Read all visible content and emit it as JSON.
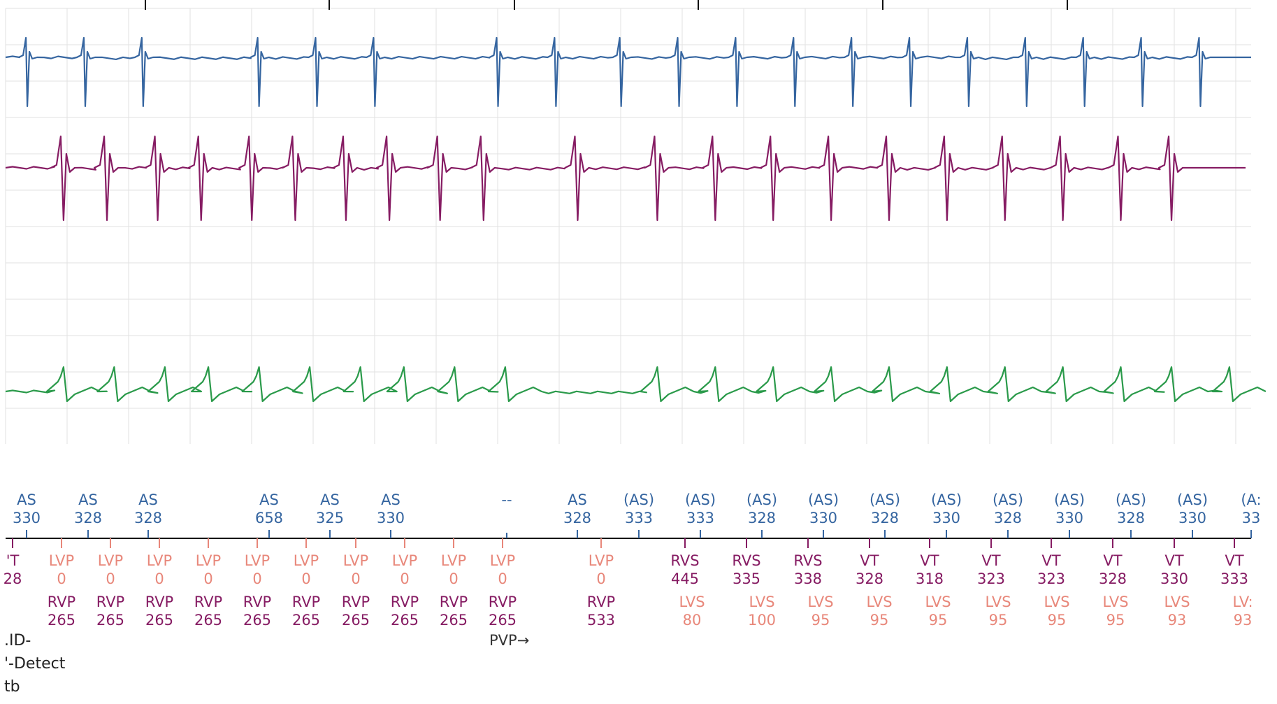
{
  "colors": {
    "atrial": "#3565a0",
    "rv": "#861c63",
    "lv": "#e8877a",
    "shock": "#2a9a4a",
    "grid": "#e2e2e2",
    "axis": "#111111"
  },
  "chart_data": {
    "type": "line",
    "title": "",
    "grid": true,
    "channels": [
      {
        "name": "",
        "color": "#3565a0",
        "kind": "atrial-egm",
        "beats": [
          0.3,
          1.1,
          1.9,
          3.5,
          4.3,
          5.1,
          6.8,
          7.6,
          8.5,
          9.3,
          10.1,
          10.9,
          11.7,
          12.5,
          13.3,
          14.1,
          14.9,
          15.7,
          16.5
        ]
      },
      {
        "name": "",
        "color": "#861c63",
        "kind": "ventricular-egm",
        "beats": [
          0.8,
          1.4,
          2.1,
          2.7,
          3.4,
          4.0,
          4.7,
          5.3,
          6.0,
          6.6,
          7.9,
          9.0,
          9.8,
          10.6,
          11.4,
          12.2,
          13.0,
          13.8,
          14.6,
          15.4,
          16.1
        ]
      },
      {
        "name": "",
        "color": "#2a9a4a",
        "kind": "far-field",
        "beats": [
          0.8,
          1.5,
          2.2,
          2.8,
          3.5,
          4.2,
          4.9,
          5.5,
          6.2,
          6.9,
          9.0,
          9.8,
          10.6,
          11.4,
          12.2,
          13.0,
          13.8,
          14.6,
          15.4,
          16.1,
          16.9
        ]
      }
    ],
    "atrial_markers": [
      {
        "label": "AS",
        "value": "330"
      },
      {
        "label": "AS",
        "value": "328"
      },
      {
        "label": "AS",
        "value": "328"
      },
      {
        "label": "AS",
        "value": "658"
      },
      {
        "label": "AS",
        "value": "325"
      },
      {
        "label": "AS",
        "value": "330"
      },
      {
        "label": "--",
        "value": ""
      },
      {
        "label": "AS",
        "value": "328"
      },
      {
        "label": "(AS)",
        "value": "333"
      },
      {
        "label": "(AS)",
        "value": "333"
      },
      {
        "label": "(AS)",
        "value": "328"
      },
      {
        "label": "(AS)",
        "value": "330"
      },
      {
        "label": "(AS)",
        "value": "328"
      },
      {
        "label": "(AS)",
        "value": "330"
      },
      {
        "label": "(AS)",
        "value": "328"
      },
      {
        "label": "(AS)",
        "value": "330"
      },
      {
        "label": "(AS)",
        "value": "328"
      },
      {
        "label": "(AS)",
        "value": "330"
      },
      {
        "label": "(A:",
        "value": "33"
      }
    ],
    "ventricular_markers": [
      {
        "label": "'T",
        "value": "28"
      },
      {
        "label": "LVP",
        "value": "0"
      },
      {
        "label": "LVP",
        "value": "0"
      },
      {
        "label": "LVP",
        "value": "0"
      },
      {
        "label": "LVP",
        "value": "0"
      },
      {
        "label": "LVP",
        "value": "0"
      },
      {
        "label": "LVP",
        "value": "0"
      },
      {
        "label": "LVP",
        "value": "0"
      },
      {
        "label": "LVP",
        "value": "0"
      },
      {
        "label": "LVP",
        "value": "0"
      },
      {
        "label": "LVP",
        "value": "0"
      },
      {
        "label": "LVP",
        "value": "0"
      },
      {
        "label": "RVS",
        "value": "445"
      },
      {
        "label": "RVS",
        "value": "335"
      },
      {
        "label": "RVS",
        "value": "338"
      },
      {
        "label": "VT",
        "value": "328"
      },
      {
        "label": "VT",
        "value": "318"
      },
      {
        "label": "VT",
        "value": "323"
      },
      {
        "label": "VT",
        "value": "323"
      },
      {
        "label": "VT",
        "value": "328"
      },
      {
        "label": "VT",
        "value": "330"
      },
      {
        "label": "VT",
        "value": "333"
      }
    ],
    "paired_markers": [
      {
        "label": "RVP",
        "value": "265"
      },
      {
        "label": "RVP",
        "value": "265"
      },
      {
        "label": "RVP",
        "value": "265"
      },
      {
        "label": "RVP",
        "value": "265"
      },
      {
        "label": "RVP",
        "value": "265"
      },
      {
        "label": "RVP",
        "value": "265"
      },
      {
        "label": "RVP",
        "value": "265"
      },
      {
        "label": "RVP",
        "value": "265"
      },
      {
        "label": "RVP",
        "value": "265"
      },
      {
        "label": "RVP",
        "value": "265"
      },
      {
        "label": "RVP",
        "value": "533"
      },
      {
        "label": "LVS",
        "value": "80"
      },
      {
        "label": "LVS",
        "value": "100"
      },
      {
        "label": "LVS",
        "value": "95"
      },
      {
        "label": "LVS",
        "value": "95"
      },
      {
        "label": "LVS",
        "value": "95"
      },
      {
        "label": "LVS",
        "value": "95"
      },
      {
        "label": "LVS",
        "value": "95"
      },
      {
        "label": "LVS",
        "value": "95"
      },
      {
        "label": "LVS",
        "value": "93"
      },
      {
        "label": "LV:",
        "value": "93"
      }
    ],
    "annotation": "PVP→"
  },
  "side_notes": [
    ".ID-",
    "'-Detect",
    "tb"
  ]
}
